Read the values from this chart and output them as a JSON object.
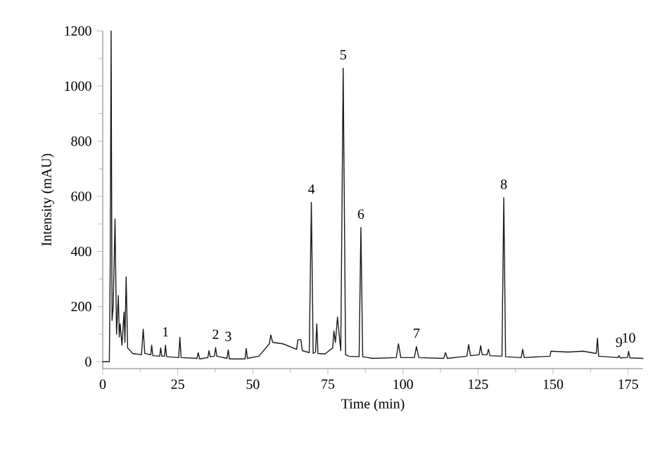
{
  "chart_data": {
    "type": "line",
    "xlabel": "Time (min)",
    "ylabel": "Intensity (mAU)",
    "color": "#1a1a1a",
    "xlim": [
      0,
      180
    ],
    "ylim": [
      -25,
      1200
    ],
    "xticks": [
      0,
      25,
      50,
      75,
      100,
      125,
      150,
      175
    ],
    "yticks": [
      0,
      200,
      400,
      600,
      800,
      1000,
      1200
    ],
    "x": [
      0,
      2.2,
      2.5,
      2.8,
      3.1,
      3.5,
      4.1,
      4.6,
      5.2,
      5.5,
      5.8,
      6.4,
      7.1,
      7.4,
      7.8,
      8.3,
      10,
      12.9,
      13.5,
      14,
      16,
      16.3,
      16.7,
      19,
      19.3,
      19.7,
      20.6,
      20.9,
      21.3,
      25.3,
      25.7,
      26.1,
      31.4,
      31.8,
      32.3,
      35,
      35.4,
      35.8,
      37.2,
      37.6,
      38,
      41.4,
      41.8,
      42.2,
      47.4,
      47.8,
      48.2,
      52,
      55.5,
      56,
      56.6,
      60,
      64.6,
      65,
      66,
      66.5,
      68.8,
      69.5,
      70.1,
      70.9,
      71.3,
      71.7,
      74,
      76.6,
      77,
      77.5,
      78.2,
      79.3,
      80.1,
      80.9,
      82,
      85.4,
      86,
      86.6,
      90,
      97.8,
      98.5,
      99.3,
      103.8,
      104.5,
      105.3,
      113.6,
      114.2,
      114.8,
      121.3,
      121.9,
      122.5,
      125.4,
      125.9,
      126.4,
      128,
      128.5,
      129,
      133,
      133.6,
      134.2,
      139.4,
      139.9,
      140.4,
      149,
      149.3,
      155,
      160,
      164.4,
      164.8,
      165.2,
      171.6,
      172,
      172.4,
      174.8,
      175.2,
      175.6,
      180
    ],
    "values": [
      0,
      0,
      350,
      1200,
      150,
      200,
      518,
      100,
      240,
      90,
      137,
      60,
      180,
      70,
      308,
      50,
      30,
      25,
      118,
      30,
      25,
      60,
      22,
      20,
      50,
      20,
      20,
      60,
      18,
      15,
      89,
      15,
      12,
      33,
      10,
      15,
      40,
      18,
      20,
      51,
      20,
      12,
      43,
      10,
      10,
      48,
      12,
      20,
      65,
      97,
      70,
      65,
      45,
      80,
      80,
      40,
      33,
      578,
      30,
      35,
      137,
      30,
      28,
      50,
      111,
      70,
      162,
      40,
      1065,
      25,
      20,
      18,
      487,
      18,
      12,
      15,
      65,
      15,
      15,
      55,
      15,
      12,
      33,
      12,
      20,
      62,
      22,
      25,
      58,
      25,
      25,
      45,
      22,
      20,
      595,
      18,
      15,
      45,
      15,
      20,
      38,
      35,
      38,
      30,
      85,
      20,
      15,
      22,
      14,
      15,
      38,
      14,
      12
    ],
    "annotations": [
      {
        "text": "1",
        "x": 20.9,
        "y": 60
      },
      {
        "text": "2",
        "x": 37.6,
        "y": 51
      },
      {
        "text": "3",
        "x": 41.8,
        "y": 43
      },
      {
        "text": "4",
        "x": 69.5,
        "y": 578
      },
      {
        "text": "5",
        "x": 80.1,
        "y": 1065
      },
      {
        "text": "6",
        "x": 86,
        "y": 487
      },
      {
        "text": "7",
        "x": 104.5,
        "y": 55
      },
      {
        "text": "8",
        "x": 133.6,
        "y": 595
      },
      {
        "text": "9",
        "x": 172,
        "y": 22
      },
      {
        "text": "10",
        "x": 175.2,
        "y": 38
      }
    ]
  }
}
